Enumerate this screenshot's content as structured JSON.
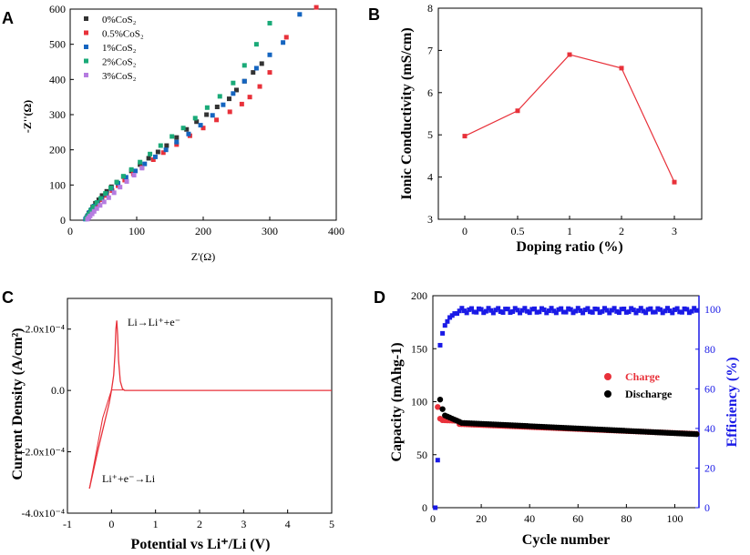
{
  "chart_data": [
    {
      "panel": "A",
      "type": "scatter",
      "xlabel": "Z'(Ω)",
      "ylabel": "-Z''(Ω)",
      "xlim": [
        0,
        400
      ],
      "ylim": [
        0,
        600
      ],
      "xticks": [
        "0",
        "100",
        "200",
        "300",
        "400"
      ],
      "yticks": [
        "0",
        "100",
        "200",
        "300",
        "400",
        "500",
        "600"
      ],
      "legend": [
        {
          "label": "0%CoS₂",
          "color": "#333333"
        },
        {
          "label": "0.5%CoS₂",
          "color": "#e8313a"
        },
        {
          "label": "1%CoS₂",
          "color": "#1565c0"
        },
        {
          "label": "2%CoS₂",
          "color": "#1aaa78"
        },
        {
          "label": "3%CoS₂",
          "color": "#b57be0"
        }
      ],
      "series": [
        {
          "name": "0%CoS₂",
          "color": "#333333",
          "x": [
            24,
            26,
            28,
            31,
            34,
            38,
            43,
            48,
            55,
            62,
            70,
            80,
            92,
            105,
            118,
            132,
            145,
            160,
            175,
            190,
            205,
            221,
            239,
            250,
            262,
            275,
            288
          ],
          "y": [
            5,
            12,
            20,
            28,
            38,
            48,
            58,
            70,
            82,
            95,
            108,
            124,
            140,
            158,
            176,
            194,
            212,
            235,
            258,
            280,
            300,
            322,
            345,
            370,
            395,
            420,
            445
          ]
        },
        {
          "name": "0.5%CoS₂",
          "color": "#e8313a",
          "x": [
            25,
            27,
            30,
            33,
            37,
            42,
            48,
            55,
            63,
            72,
            82,
            95,
            108,
            125,
            140,
            160,
            180,
            200,
            220,
            240,
            258,
            270,
            285,
            300,
            325,
            370
          ],
          "y": [
            4,
            10,
            18,
            26,
            35,
            46,
            58,
            70,
            84,
            98,
            114,
            132,
            150,
            172,
            192,
            215,
            240,
            262,
            285,
            308,
            330,
            350,
            380,
            420,
            520,
            605
          ]
        },
        {
          "name": "1%CoS₂",
          "color": "#1565c0",
          "x": [
            23,
            25,
            27,
            29,
            32,
            36,
            41,
            47,
            54,
            62,
            72,
            84,
            98,
            112,
            128,
            144,
            160,
            178,
            196,
            214,
            230,
            245,
            262,
            280,
            300,
            320,
            345
          ],
          "y": [
            3,
            8,
            14,
            22,
            30,
            40,
            50,
            62,
            75,
            90,
            105,
            122,
            140,
            160,
            180,
            200,
            222,
            245,
            270,
            298,
            328,
            360,
            395,
            432,
            470,
            505,
            585
          ]
        },
        {
          "name": "2%CoS₂",
          "color": "#1aaa78",
          "x": [
            24,
            26,
            28,
            31,
            35,
            40,
            46,
            53,
            61,
            70,
            80,
            92,
            105,
            120,
            136,
            153,
            170,
            188,
            206,
            225,
            245,
            262,
            280,
            300
          ],
          "y": [
            4,
            10,
            18,
            28,
            38,
            50,
            62,
            76,
            92,
            108,
            125,
            144,
            165,
            188,
            212,
            238,
            262,
            290,
            320,
            352,
            390,
            440,
            500,
            560
          ]
        },
        {
          "name": "3%CoS₂",
          "color": "#b57be0",
          "x": [
            26,
            28,
            30,
            33,
            36,
            40,
            45,
            51,
            58,
            66,
            75,
            85,
            96,
            108
          ],
          "y": [
            3,
            7,
            12,
            18,
            25,
            33,
            42,
            52,
            64,
            78,
            94,
            110,
            128,
            148
          ]
        }
      ]
    },
    {
      "panel": "B",
      "type": "line",
      "xlabel": "Doping ratio (%)",
      "ylabel": "Ionic Conductivity (mS/cm)",
      "categories": [
        "0",
        "0.5",
        "1",
        "2",
        "3"
      ],
      "values": [
        4.97,
        5.57,
        6.9,
        6.58,
        3.88
      ],
      "ylim": [
        3,
        8
      ],
      "yticks": [
        "3",
        "4",
        "5",
        "6",
        "7",
        "8"
      ],
      "color": "#e8313a"
    },
    {
      "panel": "C",
      "type": "line",
      "xlabel": "Potential vs Li⁺/Li (V)",
      "ylabel": "Current Density (A/cm²)",
      "xlim": [
        -1,
        5
      ],
      "ylim": [
        -0.0004,
        0.0003
      ],
      "xticks": [
        "-1",
        "0",
        "1",
        "2",
        "3",
        "4",
        "5"
      ],
      "yticks": [
        "-4.0x10⁻⁴",
        "-2.0x10⁻⁴",
        "0.0",
        "2.0x10⁻⁴"
      ],
      "annotations": [
        "Li→Li⁺+e⁻",
        "Li⁺+e⁻→Li"
      ],
      "color": "#e8313a",
      "x": [
        -0.5,
        -0.3,
        -0.15,
        -0.05,
        0.0,
        0.05,
        0.08,
        0.1,
        0.12,
        0.14,
        0.16,
        0.2,
        0.25,
        0.3,
        0.5,
        1.0,
        2.0,
        3.0,
        4.0,
        5.0
      ],
      "y": [
        -0.00032,
        -0.00019,
        -0.0001,
        -4e-05,
        0.0,
        5e-05,
        0.00012,
        0.0002,
        0.000228,
        0.00018,
        0.0001,
        3e-05,
        5e-06,
        0.0,
        0.0,
        0.0,
        0.0,
        0.0,
        0.0,
        0.0
      ]
    },
    {
      "panel": "D",
      "type": "scatter",
      "xlabel": "Cycle number",
      "ylabel": "Capacity (mAhg-1)",
      "y2label": "Efficiency (%)",
      "xlim": [
        0,
        110
      ],
      "ylim": [
        0,
        200
      ],
      "y2lim": [
        0,
        107
      ],
      "xticks": [
        "0",
        "20",
        "40",
        "60",
        "80",
        "100"
      ],
      "yticks": [
        "0",
        "50",
        "100",
        "150",
        "200"
      ],
      "y2ticks": [
        "0",
        "20",
        "40",
        "60",
        "80",
        "100"
      ],
      "legend": [
        {
          "label": "Charge",
          "color": "#e8313a"
        },
        {
          "label": "Discharge",
          "color": "#000000"
        }
      ],
      "series": [
        {
          "name": "Charge",
          "axis": "left",
          "color": "#e8313a",
          "start": 2,
          "end": 109,
          "first": 95,
          "values_hint": "decays to ~70"
        },
        {
          "name": "Discharge",
          "axis": "left",
          "color": "#000000",
          "start": 3,
          "end": 109,
          "first": 102,
          "values_hint": "decays to ~69"
        },
        {
          "name": "Efficiency",
          "axis": "right",
          "color": "#1a1ae6",
          "x": [
            1,
            2,
            3,
            4,
            5,
            6,
            7,
            8,
            9,
            10
          ],
          "y": [
            0,
            24,
            82,
            88,
            92,
            94,
            96,
            97,
            98,
            98
          ]
        }
      ]
    }
  ],
  "panels": {
    "A": {
      "letter": "A"
    },
    "B": {
      "letter": "B"
    },
    "C": {
      "letter": "C"
    },
    "D": {
      "letter": "D"
    }
  }
}
